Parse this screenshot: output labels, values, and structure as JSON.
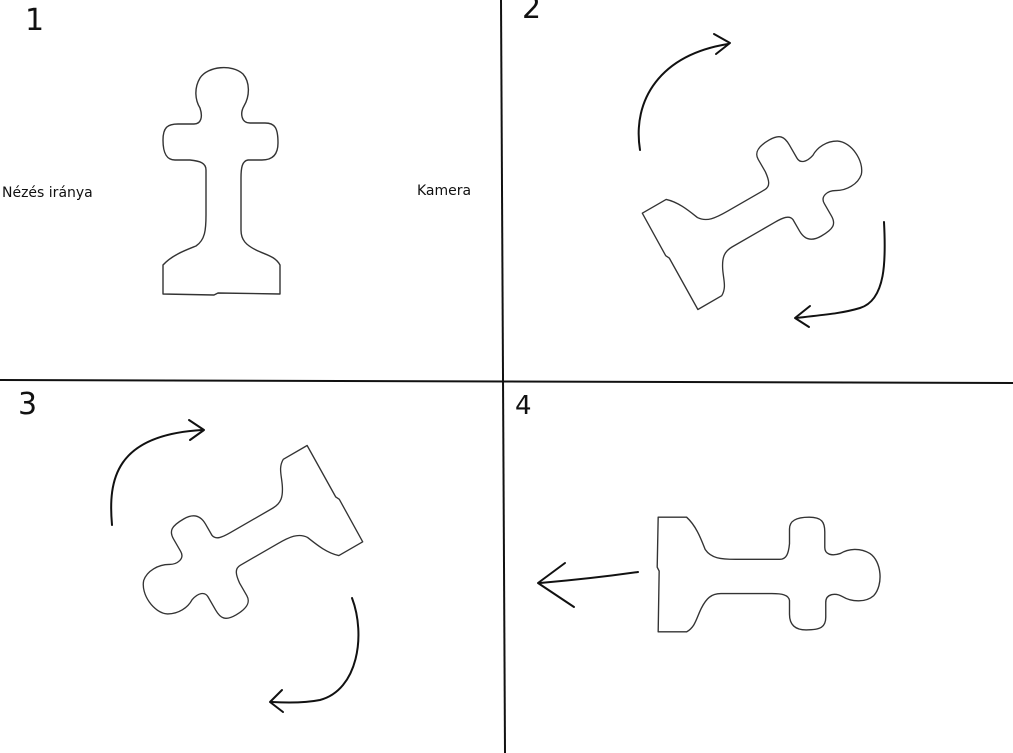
{
  "panels": [
    {
      "number": "1"
    },
    {
      "number": "2"
    },
    {
      "number": "3"
    },
    {
      "number": "4"
    }
  ],
  "labels": {
    "view_direction": "Nézés iránya",
    "camera": "Kamera"
  },
  "colors": {
    "background": "#ffffff",
    "ink": "#111111",
    "outline": "#333333"
  },
  "icons": {
    "piece": "chess-pawn-outline",
    "rotation": "curved-arrow",
    "direction": "straight-arrow"
  }
}
